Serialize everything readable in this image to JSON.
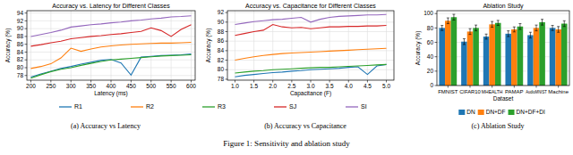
{
  "figure_caption": "Figure 1: Sensitivity and ablation study",
  "chart_data": [
    {
      "type": "line",
      "title": "Accuracy vs. Latency for Different Classes",
      "caption": "(a) Accuracy vs Latency",
      "x_label": "Latency (ms)",
      "y_label": "Accuracy (%)",
      "x": [
        200,
        225,
        250,
        275,
        300,
        325,
        350,
        375,
        400,
        425,
        450,
        475,
        500,
        525,
        550,
        575,
        600
      ],
      "xlim": [
        190,
        610
      ],
      "xticks": [
        200,
        250,
        300,
        350,
        400,
        450,
        500,
        550,
        600
      ],
      "ylim": [
        76.8,
        94.6
      ],
      "yticks": [
        78,
        80,
        82,
        84,
        86,
        88,
        90,
        92,
        94
      ],
      "grid": true,
      "legend": "lower center",
      "series": [
        {
          "name": "R1",
          "color": "#1f77b4",
          "values": [
            77.6,
            78.4,
            79.1,
            79.8,
            80.3,
            80.9,
            81.4,
            81.9,
            82.1,
            81.2,
            78.1,
            82.7,
            82.9,
            83.1,
            83.2,
            83.3,
            83.5
          ]
        },
        {
          "name": "R2",
          "color": "#ff7f0e",
          "values": [
            79.8,
            80.3,
            81.0,
            82.5,
            85.0,
            84.2,
            84.8,
            85.3,
            85.6,
            85.8,
            86.0,
            86.1,
            86.2,
            86.3,
            86.3,
            86.4,
            86.5
          ]
        },
        {
          "name": "R3",
          "color": "#2ca02c",
          "values": [
            77.3,
            78.2,
            79.0,
            79.6,
            80.0,
            80.6,
            81.1,
            81.6,
            82.0,
            82.2,
            82.4,
            82.6,
            82.8,
            83.0,
            83.1,
            83.2,
            83.3
          ]
        },
        {
          "name": "SJ",
          "color": "#d62728",
          "values": [
            85.5,
            85.9,
            86.4,
            86.8,
            87.4,
            87.7,
            88.0,
            88.2,
            88.5,
            88.7,
            89.0,
            89.3,
            90.2,
            89.5,
            88.0,
            89.8,
            91.0
          ]
        },
        {
          "name": "SI",
          "color": "#9467bd",
          "values": [
            88.0,
            88.5,
            89.0,
            89.6,
            90.4,
            90.7,
            91.0,
            91.2,
            91.5,
            91.7,
            92.0,
            92.2,
            92.5,
            92.7,
            93.0,
            93.1,
            93.3
          ]
        }
      ]
    },
    {
      "type": "line",
      "title": "Accuracy vs. Capacitance for Different Classes",
      "caption": "(b) Accuracy vs Capacitance",
      "x_label": "Capacitance (F)",
      "y_label": "Accuracy (%)",
      "x": [
        1.0,
        1.25,
        1.5,
        1.75,
        2.0,
        2.25,
        2.5,
        2.75,
        3.0,
        3.25,
        3.5,
        3.75,
        4.0,
        4.25,
        4.5,
        4.75,
        5.0
      ],
      "xlim": [
        0.8,
        5.2
      ],
      "xticks": [
        {
          "value": 1,
          "label": "1.0"
        },
        1.5,
        {
          "value": 2,
          "label": "2.0"
        },
        2.5,
        {
          "value": 3,
          "label": "3.0"
        },
        3.5,
        {
          "value": 4,
          "label": "4.0"
        },
        4.5,
        {
          "value": 5,
          "label": "5.0"
        }
      ],
      "ylim": [
        77.8,
        92.4
      ],
      "yticks": [
        78,
        80,
        82,
        84,
        86,
        88,
        90,
        92
      ],
      "grid": true,
      "series": [
        {
          "color": "#1f77b4",
          "values": [
            78.5,
            78.8,
            79.0,
            79.2,
            79.4,
            79.5,
            79.7,
            79.8,
            80.0,
            80.1,
            80.2,
            80.3,
            80.5,
            80.6,
            79.0,
            80.8,
            81.1
          ]
        },
        {
          "color": "#ff7f0e",
          "values": [
            82.0,
            82.4,
            82.7,
            83.0,
            83.2,
            83.4,
            83.5,
            83.6,
            83.7,
            83.8,
            83.9,
            84.0,
            84.1,
            84.2,
            84.3,
            84.4,
            84.5
          ]
        },
        {
          "color": "#2ca02c",
          "values": [
            79.3,
            79.5,
            79.7,
            79.8,
            80.0,
            80.1,
            80.2,
            80.3,
            80.4,
            80.5,
            80.5,
            80.6,
            80.7,
            80.8,
            80.9,
            81.0,
            81.1
          ]
        },
        {
          "color": "#d62728",
          "values": [
            87.2,
            87.6,
            88.0,
            88.3,
            89.5,
            89.0,
            88.8,
            88.9,
            88.6,
            88.8,
            89.0,
            89.0,
            89.1,
            89.1,
            89.2,
            89.2,
            89.3
          ]
        },
        {
          "color": "#9467bd",
          "values": [
            89.5,
            89.8,
            90.1,
            90.3,
            90.5,
            90.6,
            90.8,
            91.0,
            90.0,
            90.6,
            91.0,
            91.2,
            91.3,
            91.4,
            91.5,
            91.5,
            91.6
          ]
        }
      ]
    },
    {
      "type": "bar",
      "title": "Ablation Study",
      "caption": "(c) Ablation Study",
      "x_label": "Dataset",
      "y_label": "Accuracy (%)",
      "categories": [
        "FMNIST",
        "CIFAR10",
        "MHEALTH",
        "PAMAP",
        "AudioMNIST",
        "Machine"
      ],
      "ylim": [
        0,
        104
      ],
      "yticks": [
        0,
        20,
        40,
        60,
        80,
        100
      ],
      "grid": true,
      "legend": "lower center",
      "series": [
        {
          "name": "DN",
          "color": "#1f77b4",
          "values": [
            80,
            61,
            68,
            72,
            70,
            80
          ],
          "errors": [
            3.5,
            4,
            3.5,
            4,
            4,
            3.5
          ]
        },
        {
          "name": "DN+DF",
          "color": "#ff7f0e",
          "values": [
            90,
            75,
            85,
            78,
            80,
            78
          ],
          "errors": [
            4,
            4,
            4,
            3.5,
            4,
            4
          ]
        },
        {
          "name": "DN+DF+DI",
          "color": "#2ca02c",
          "values": [
            95,
            80,
            87,
            82,
            88,
            86
          ],
          "errors": [
            4,
            4,
            3.5,
            4,
            4,
            4
          ]
        }
      ]
    }
  ]
}
